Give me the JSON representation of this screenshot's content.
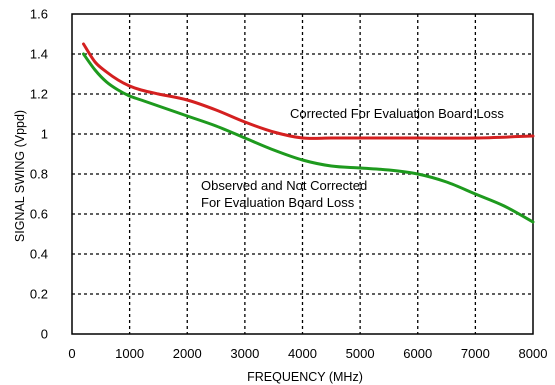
{
  "chart_data": {
    "type": "line",
    "xlabel": "FREQUENCY (MHz)",
    "ylabel": "SIGNAL SWING (Vppd)",
    "xlim": [
      0,
      8000
    ],
    "ylim": [
      0,
      1.6
    ],
    "xticks": [
      "0",
      "1000",
      "2000",
      "3000",
      "4000",
      "5000",
      "6000",
      "7000",
      "8000"
    ],
    "yticks": [
      "0",
      "0.2",
      "0.4",
      "0.6",
      "0.8",
      "1",
      "1.2",
      "1.4",
      "1.6"
    ],
    "xtick_values": [
      0,
      1000,
      2000,
      3000,
      4000,
      5000,
      6000,
      7000,
      8000
    ],
    "ytick_values": [
      0,
      0.2,
      0.4,
      0.6,
      0.8,
      1.0,
      1.2,
      1.4,
      1.6
    ],
    "grid": true,
    "series": [
      {
        "color": "#d42020",
        "x": [
          200,
          400,
          600,
          800,
          1000,
          1200,
          1500,
          2000,
          2500,
          3000,
          3500,
          4000,
          4500,
          5000,
          6000,
          7000,
          8000
        ],
        "y": [
          1.45,
          1.36,
          1.31,
          1.27,
          1.24,
          1.22,
          1.2,
          1.17,
          1.12,
          1.06,
          1.01,
          0.98,
          0.98,
          0.98,
          0.98,
          0.98,
          0.99
        ]
      },
      {
        "color": "#1e9a1e",
        "x": [
          200,
          400,
          600,
          800,
          1000,
          1200,
          1500,
          2000,
          2500,
          3000,
          3500,
          4000,
          4500,
          5000,
          5500,
          6000,
          6500,
          7000,
          7500,
          8000
        ],
        "y": [
          1.4,
          1.32,
          1.26,
          1.22,
          1.19,
          1.17,
          1.14,
          1.09,
          1.04,
          0.98,
          0.92,
          0.87,
          0.84,
          0.83,
          0.82,
          0.8,
          0.76,
          0.7,
          0.64,
          0.56
        ]
      }
    ],
    "annotations": {
      "corrected": "Corrected For Evaluation Board Loss",
      "observed_line1": "Observed and Not Corrected",
      "observed_line2": "For Evaluation Board Loss"
    }
  }
}
